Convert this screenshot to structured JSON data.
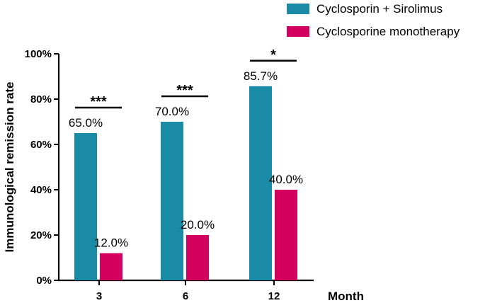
{
  "chart_data": {
    "type": "bar",
    "categories": [
      "3",
      "6",
      "12"
    ],
    "series": [
      {
        "name": "Cyclosporin + Sirolimus",
        "values": [
          65.0,
          70.0,
          85.7
        ],
        "labels": [
          "65.0%",
          "70.0%",
          "85.7%"
        ],
        "color": "#1a8ba6"
      },
      {
        "name": "Cyclosporine monotherapy",
        "values": [
          12.0,
          20.0,
          40.0
        ],
        "labels": [
          "12.0%",
          "20.0%",
          "40.0%"
        ],
        "color": "#d4005f"
      }
    ],
    "significance": [
      "***",
      "***",
      "*"
    ],
    "xlabel": "Month",
    "ylabel": "Immunological remission rate",
    "ylim": [
      0,
      100
    ],
    "yticks": [
      0,
      20,
      40,
      60,
      80,
      100
    ],
    "ytick_labels": [
      "0%",
      "20%",
      "40%",
      "60%",
      "80%",
      "100%"
    ],
    "legend_position": "top-right"
  }
}
